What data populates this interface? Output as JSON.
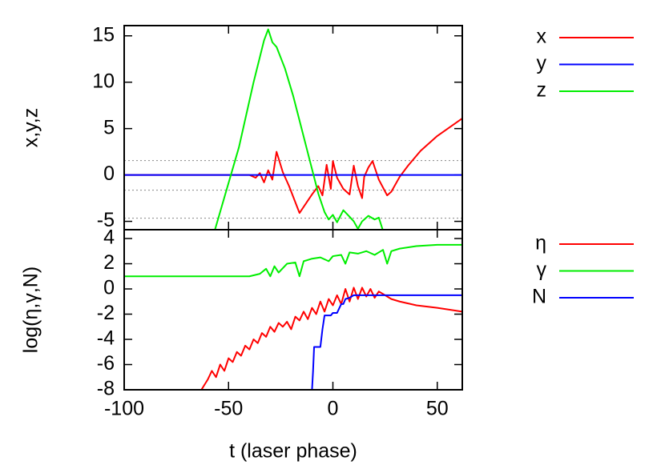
{
  "chart_data": [
    {
      "type": "line",
      "ylabel": "x,y,z",
      "xlim": [
        -100,
        62
      ],
      "xticks": [
        -100,
        -50,
        0,
        50
      ],
      "ylim": [
        -5.9,
        16.1
      ],
      "yticks": [
        -5,
        0,
        5,
        10,
        15
      ],
      "reference_lines": [
        1.55,
        -1.64,
        -4.66
      ],
      "legend": "right",
      "series": [
        {
          "name": "x",
          "color": "#ff0000",
          "x": [
            -100,
            -40,
            -37,
            -35,
            -33,
            -31,
            -29,
            -27,
            -24,
            -21,
            -16,
            -10,
            -7,
            -5,
            -3,
            -1,
            0,
            2,
            5,
            8,
            10,
            12,
            14,
            15,
            17,
            19,
            22,
            26,
            28,
            32,
            36,
            42,
            50,
            62
          ],
          "values": [
            0,
            0,
            -0.3,
            0.2,
            -0.8,
            0.5,
            -0.5,
            2.5,
            0.3,
            -1.2,
            -4.1,
            -2.1,
            -1.2,
            -2.2,
            1.1,
            -1.5,
            1.5,
            -0.3,
            -1.5,
            -2.1,
            1,
            -1.2,
            -2.5,
            -0.2,
            0.8,
            1.5,
            -0.5,
            -2.2,
            -1.8,
            -0.2,
            1,
            2.6,
            4.2,
            6.1
          ]
        },
        {
          "name": "y",
          "color": "#0000ff",
          "x": [
            -100,
            62
          ],
          "values": [
            0,
            0
          ]
        },
        {
          "name": "z",
          "color": "#00ee00",
          "x": [
            -56.5,
            -45,
            -38,
            -33,
            -31,
            -29,
            -27,
            -23,
            -19,
            -15,
            -11,
            -7,
            -4,
            -2,
            0,
            2,
            5,
            8,
            10,
            12,
            14,
            17,
            20,
            22,
            24
          ],
          "values": [
            -5.9,
            3,
            10,
            14.5,
            15.7,
            14.3,
            13.8,
            11.5,
            8.5,
            5,
            1.5,
            -2,
            -4,
            -4.8,
            -4.3,
            -5.1,
            -3.8,
            -4.5,
            -5,
            -5.8,
            -5,
            -4.4,
            -4.8,
            -4.6,
            -6
          ]
        }
      ]
    },
    {
      "type": "line",
      "xlabel": "t (laser phase)",
      "ylabel": "log(η,γ,N)",
      "xlim": [
        -100,
        62
      ],
      "xticks": [
        -100,
        -50,
        0,
        50
      ],
      "ylim": [
        -8,
        4.7
      ],
      "yticks": [
        -8,
        -6,
        -4,
        -2,
        0,
        2,
        4
      ],
      "legend": "right",
      "series": [
        {
          "name": "η",
          "color": "#ff0000",
          "x": [
            -63,
            -60,
            -58,
            -56,
            -54,
            -52,
            -50,
            -48,
            -46,
            -44,
            -42,
            -40,
            -38,
            -36,
            -34,
            -32,
            -30,
            -28,
            -26,
            -24,
            -22,
            -20,
            -18,
            -16,
            -14,
            -12,
            -10,
            -8,
            -6,
            -4,
            -2,
            0,
            2,
            4,
            6,
            8,
            10,
            12,
            14,
            16,
            18,
            20,
            22,
            25,
            28,
            32,
            40,
            50,
            62
          ],
          "values": [
            -8,
            -7.2,
            -6.5,
            -7,
            -6,
            -6.5,
            -5.5,
            -5.8,
            -5,
            -5.3,
            -4.5,
            -4.8,
            -4,
            -4.3,
            -3.5,
            -3.8,
            -3,
            -3.4,
            -2.7,
            -3,
            -2.6,
            -3.2,
            -2.2,
            -2.5,
            -1.8,
            -2.4,
            -1.5,
            -2,
            -1,
            -1.8,
            -0.8,
            -1.3,
            -0.5,
            -1.2,
            0,
            -1,
            0.1,
            -0.8,
            0.1,
            -0.6,
            0,
            -0.7,
            -0.2,
            -0.5,
            -0.8,
            -1,
            -1.3,
            -1.5,
            -1.8
          ]
        },
        {
          "name": "γ",
          "color": "#00ee00",
          "x": [
            -100,
            -40,
            -35,
            -32,
            -30,
            -28,
            -26,
            -22,
            -18,
            -16,
            -14,
            -10,
            -6,
            -2,
            0,
            4,
            6,
            8,
            12,
            16,
            20,
            24,
            26,
            28,
            32,
            40,
            50,
            62
          ],
          "values": [
            1,
            1,
            1.2,
            1.6,
            1,
            1.8,
            1.3,
            2,
            2.1,
            1,
            2.2,
            2.4,
            2.5,
            2.2,
            2.6,
            2.7,
            2,
            2.9,
            2.8,
            3,
            2.7,
            3.1,
            2,
            3,
            3.2,
            3.4,
            3.5,
            3.5
          ]
        },
        {
          "name": "N",
          "color": "#0000ff",
          "x": [
            -10,
            -9.5,
            -9,
            -6,
            -5,
            -4,
            -1,
            0,
            2,
            4,
            5,
            6,
            8,
            10,
            62
          ],
          "values": [
            -8,
            -6.5,
            -4.6,
            -4.6,
            -3.2,
            -2.1,
            -2.1,
            -1.9,
            -1.9,
            -1.2,
            -1.2,
            -0.8,
            -0.7,
            -0.5,
            -0.5
          ]
        }
      ]
    }
  ]
}
